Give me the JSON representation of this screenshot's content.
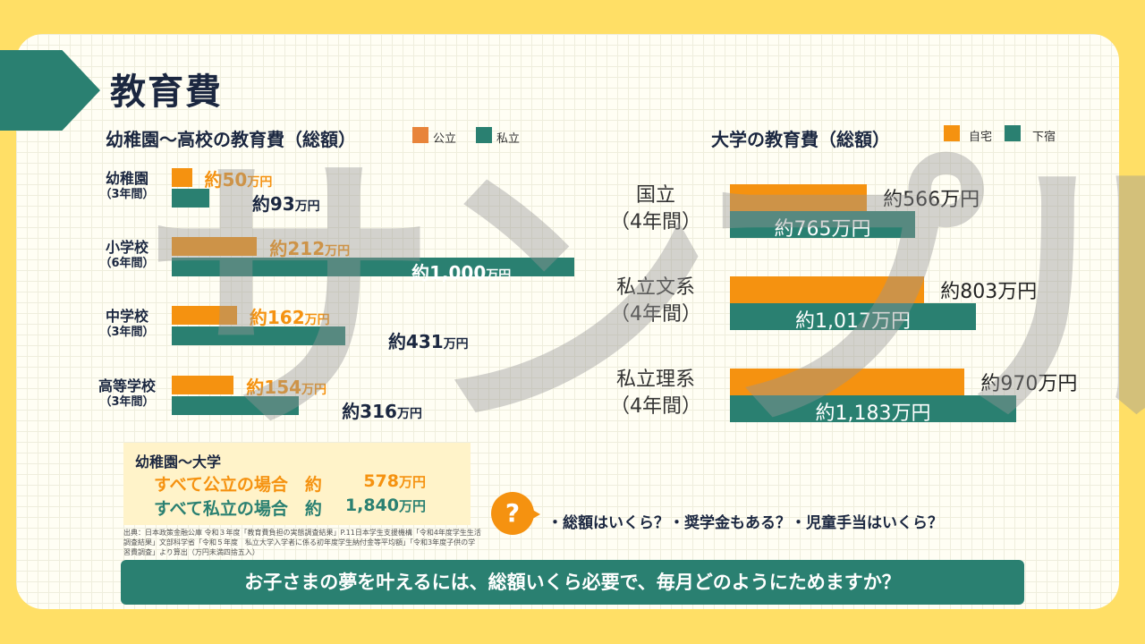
{
  "page_title": "教育費",
  "watermark": "サンプル",
  "chart_data": [
    {
      "type": "bar",
      "title": "幼稚園〜高校の教育費（総額）",
      "unit": "万円",
      "categories": [
        {
          "name": "幼稚園",
          "period": "（3年間）"
        },
        {
          "name": "小学校",
          "period": "（6年間）"
        },
        {
          "name": "中学校",
          "period": "（3年間）"
        },
        {
          "name": "高等学校",
          "period": "（3年間）"
        }
      ],
      "series": [
        {
          "name": "公立",
          "color": "#F59210",
          "values": [
            50,
            212,
            162,
            154
          ],
          "labels": [
            "約50",
            "約212",
            "約162",
            "約154"
          ]
        },
        {
          "name": "私立",
          "color": "#2A8071",
          "values": [
            93,
            1000,
            431,
            316
          ],
          "labels": [
            "約93",
            "約1,000",
            "約431",
            "約316"
          ]
        }
      ]
    },
    {
      "type": "bar",
      "title": "大学の教育費（総額）",
      "unit": "万円",
      "categories": [
        {
          "name": "国立",
          "period": "（4年間）"
        },
        {
          "name": "私立文系",
          "period": "（4年間）"
        },
        {
          "name": "私立理系",
          "period": "（4年間）"
        }
      ],
      "series": [
        {
          "name": "自宅",
          "color": "#F59210",
          "values": [
            566,
            803,
            970
          ],
          "labels": [
            "約566万円",
            "約803万円",
            "約970万円"
          ]
        },
        {
          "name": "下宿",
          "color": "#2A8071",
          "values": [
            765,
            1017,
            1183
          ],
          "labels": [
            "約765万円",
            "約1,017万円",
            "約1,183万円"
          ]
        }
      ]
    }
  ],
  "summary": {
    "heading": "幼稚園〜大学",
    "public_label": "すべて公立の場合　約",
    "public_value": "578",
    "private_label": "すべて私立の場合　約",
    "private_value": "1,840",
    "unit": "万円"
  },
  "source_note": "出典：日本政策金融公庫 令和３年度「教育費負担の実態調査結果」P.11日本学生支援機構「令和4年度学生生活調査結果」文部科学省「令和５年度　私立大学入学者に係る初年度学生納付金等平均額」「令和3年度子供の学習費調査」より算出（万円未満四捨五入）",
  "question_mark": "?",
  "question_text": "・総額はいくら？・奨学金もある？・児童手当はいくら？",
  "banner_text": "お子さまの夢を叶えるには、総額いくら必要で、毎月どのようにためますか？"
}
